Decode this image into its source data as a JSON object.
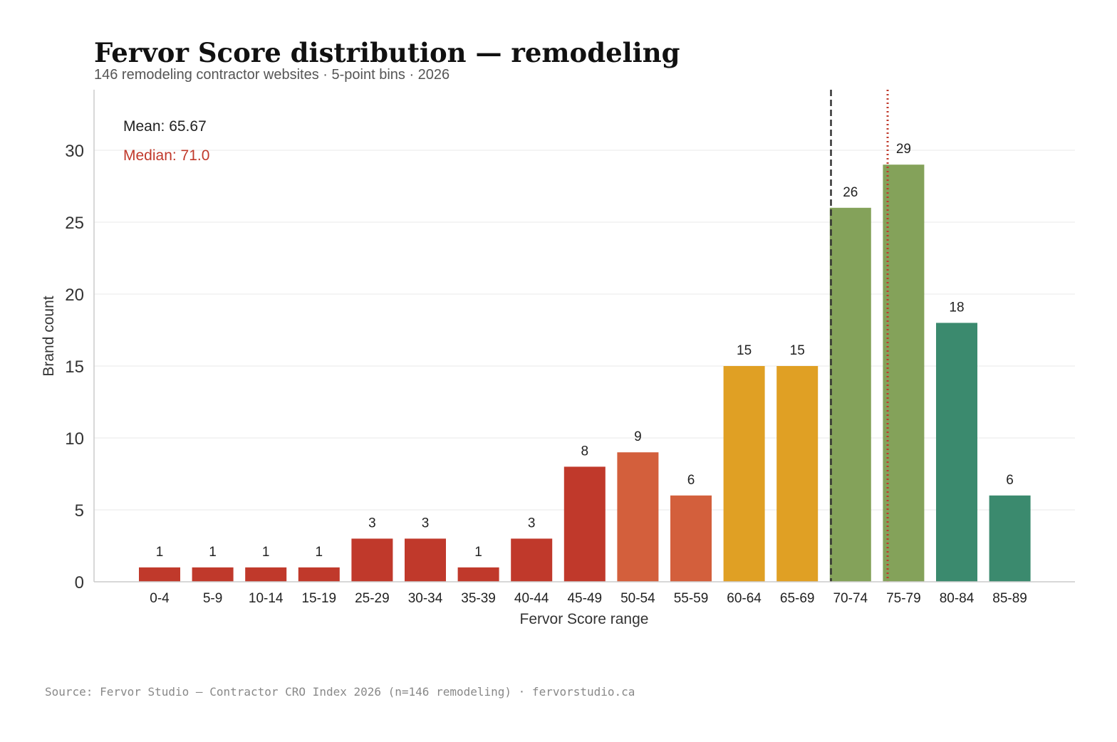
{
  "header": {
    "title": "Fervor Score distribution — remodeling",
    "subtitle": "146 remodeling contractor websites · 5-point bins · 2026"
  },
  "footer": {
    "source": "Source: Fervor Studio — Contractor CRO Index 2026 (n=146 remodeling) · fervorstudio.ca"
  },
  "chart_data": {
    "type": "bar",
    "title": "Fervor Score distribution — remodeling",
    "subtitle": "146 remodeling contractor websites · 5-point bins · 2026",
    "xlabel": "Fervor Score range",
    "ylabel": "Brand count",
    "ylim": [
      0,
      34
    ],
    "yticks": [
      0,
      5,
      10,
      15,
      20,
      25,
      30
    ],
    "grid": "horizontal",
    "categories": [
      "0-4",
      "5-9",
      "10-14",
      "15-19",
      "25-29",
      "30-34",
      "35-39",
      "40-44",
      "45-49",
      "50-54",
      "55-59",
      "60-64",
      "65-69",
      "70-74",
      "75-79",
      "80-84",
      "85-89"
    ],
    "values": [
      1,
      1,
      1,
      1,
      3,
      3,
      1,
      3,
      8,
      9,
      6,
      15,
      15,
      26,
      29,
      18,
      6
    ],
    "bar_colors": [
      "#c0392b",
      "#c0392b",
      "#c0392b",
      "#c0392b",
      "#c0392b",
      "#c0392b",
      "#c0392b",
      "#c0392b",
      "#c0392b",
      "#d35f3c",
      "#d35f3c",
      "#e0a024",
      "#e0a024",
      "#84a25a",
      "#84a25a",
      "#3b8a6e",
      "#3b8a6e"
    ],
    "reference_lines": [
      {
        "label": "Mean: 65.67",
        "value": 65.67,
        "style": "dashed",
        "color": "#333333"
      },
      {
        "label": "Median: 71.0",
        "value": 71.0,
        "style": "dotted",
        "color": "#c0392b"
      }
    ]
  }
}
